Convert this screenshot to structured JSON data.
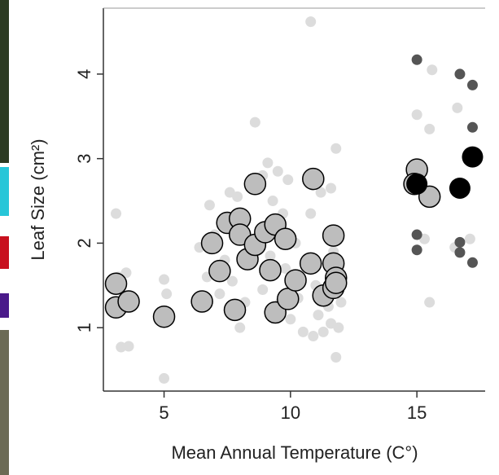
{
  "chart_data": {
    "type": "scatter",
    "xlabel": "Mean Annual Temperature (C°)",
    "ylabel": "Leaf Size (cm²)",
    "xlim": [
      2.6,
      17.7
    ],
    "ylim": [
      0.25,
      4.78
    ],
    "xticks": [
      5,
      10,
      15
    ],
    "yticks": [
      1,
      2,
      3,
      4
    ],
    "grid": false,
    "series": [
      {
        "color": "#dcdcdc",
        "x": [
          3.1,
          3.2,
          3.0,
          3.3,
          3.6,
          3.5,
          5.0,
          5.0,
          5.1,
          6.4,
          6.7,
          6.8,
          7.0,
          7.2,
          7.4,
          7.6,
          7.7,
          7.9,
          8.0,
          8.2,
          8.4,
          8.6,
          8.6,
          8.9,
          8.9,
          9.1,
          9.2,
          9.3,
          9.5,
          9.6,
          9.7,
          9.8,
          9.9,
          10.0,
          10.2,
          10.3,
          10.5,
          10.6,
          10.8,
          10.8,
          10.9,
          11.0,
          11.1,
          11.2,
          11.3,
          11.5,
          11.6,
          11.7,
          11.8,
          11.8,
          11.9,
          12.0,
          11.6,
          15.0,
          15.3,
          15.5,
          15.6,
          15.5,
          16.6,
          17.1,
          16.5
        ],
        "values": [
          2.35,
          1.6,
          1.25,
          0.77,
          0.78,
          1.65,
          1.57,
          0.4,
          1.4,
          1.95,
          1.6,
          2.45,
          2.1,
          1.4,
          1.8,
          2.6,
          1.55,
          2.55,
          1.0,
          1.3,
          1.95,
          3.43,
          2.05,
          1.45,
          2.8,
          2.95,
          1.85,
          2.5,
          2.85,
          1.3,
          2.35,
          1.7,
          2.75,
          1.1,
          2.0,
          1.35,
          0.95,
          1.75,
          4.62,
          2.35,
          0.9,
          1.5,
          1.15,
          2.6,
          0.95,
          1.25,
          1.05,
          1.9,
          3.12,
          0.65,
          1.0,
          1.3,
          2.65,
          3.52,
          2.05,
          3.35,
          4.05,
          1.3,
          3.6,
          2.05,
          1.95
        ]
      },
      {
        "color": "#bdbdbd",
        "edgecolor": "#000000",
        "x": [
          3.1,
          3.1,
          3.6,
          5.0,
          6.5,
          6.9,
          7.2,
          7.5,
          7.8,
          8.0,
          8.0,
          8.3,
          8.6,
          8.6,
          9.0,
          9.2,
          9.4,
          9.4,
          9.8,
          9.9,
          10.2,
          10.9,
          10.8,
          11.3,
          11.7,
          11.7,
          11.7,
          11.8,
          11.8,
          15.0,
          14.9,
          15.5
        ],
        "values": [
          1.52,
          1.24,
          1.31,
          1.13,
          1.31,
          2.0,
          1.67,
          2.24,
          1.21,
          2.29,
          2.1,
          1.81,
          2.7,
          1.98,
          2.13,
          1.68,
          2.22,
          1.18,
          2.05,
          1.34,
          1.56,
          2.76,
          1.76,
          1.38,
          2.09,
          1.76,
          1.47,
          1.59,
          1.53,
          2.87,
          2.7,
          2.55
        ]
      },
      {
        "color": "#555555",
        "x": [
          15.0,
          15.0,
          15.0,
          16.7,
          16.7,
          16.7,
          17.2,
          17.2,
          17.2
        ],
        "values": [
          4.17,
          2.1,
          1.92,
          4.0,
          2.01,
          1.89,
          3.87,
          3.37,
          1.77
        ]
      },
      {
        "color": "#000000",
        "x": [
          15.0,
          16.7,
          17.2
        ],
        "values": [
          2.7,
          2.65,
          3.02
        ]
      }
    ]
  }
}
